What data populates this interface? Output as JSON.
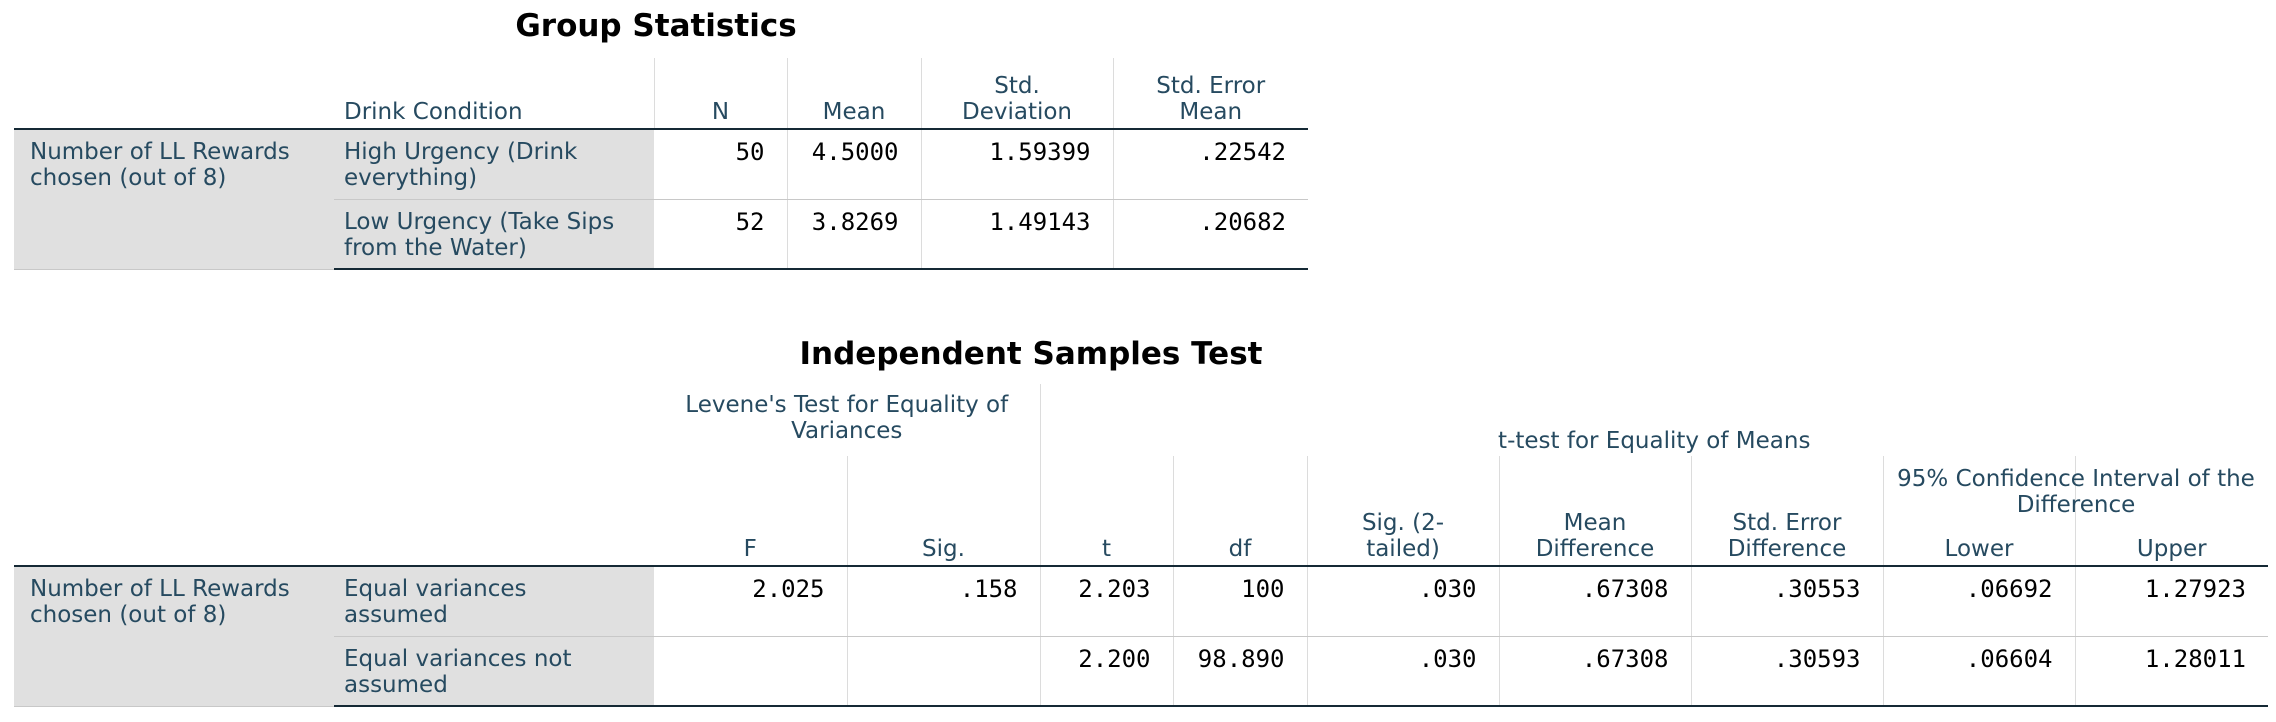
{
  "group_statistics": {
    "title": "Group Statistics",
    "headers": {
      "drink_condition": "Drink Condition",
      "n": "N",
      "mean": "Mean",
      "std_deviation": "Std. Deviation",
      "std_error_mean": "Std. Error Mean"
    },
    "variable_label": "Number of LL Rewards chosen (out of 8)",
    "rows": [
      {
        "condition": "High Urgency (Drink everything)",
        "n": "50",
        "mean": "4.5000",
        "std_deviation": "1.59399",
        "std_error_mean": ".22542"
      },
      {
        "condition": "Low Urgency (Take Sips from the Water)",
        "n": "52",
        "mean": "3.8269",
        "std_deviation": "1.49143",
        "std_error_mean": ".20682"
      }
    ]
  },
  "independent_samples_test": {
    "title": "Independent Samples Test",
    "levene_header": "Levene's Test for Equality of Variances",
    "ttest_header": "t-test for Equality of Means",
    "ci_header": "95% Confidence Interval of the Difference",
    "headers": {
      "f": "F",
      "sig": "Sig.",
      "t": "t",
      "df": "df",
      "sig_2tailed": "Sig. (2-tailed)",
      "mean_difference": "Mean Difference",
      "std_error_difference": "Std. Error Difference",
      "lower": "Lower",
      "upper": "Upper"
    },
    "variable_label": "Number of LL Rewards chosen (out of 8)",
    "rows": [
      {
        "assumption": "Equal variances assumed",
        "f": "2.025",
        "sig": ".158",
        "t": "2.203",
        "df": "100",
        "sig_2tailed": ".030",
        "mean_difference": ".67308",
        "std_error_difference": ".30553",
        "lower": ".06692",
        "upper": "1.27923"
      },
      {
        "assumption": "Equal variances not assumed",
        "f": "",
        "sig": "",
        "t": "2.200",
        "df": "98.890",
        "sig_2tailed": ".030",
        "mean_difference": ".67308",
        "std_error_difference": ".30593",
        "lower": ".06604",
        "upper": "1.28011"
      }
    ]
  }
}
